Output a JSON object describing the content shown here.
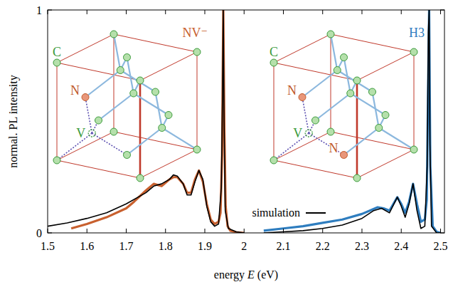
{
  "chart_data": {
    "type": "line",
    "xlabel": "energy E (eV)",
    "ylabel": "normal. PL intensity",
    "xlim": [
      1.5,
      2.51
    ],
    "xticks": [
      1.5,
      1.6,
      1.7,
      1.8,
      1.9,
      2,
      2.1,
      2.2,
      2.3,
      2.4,
      2.5
    ],
    "ylim": [
      0,
      1
    ],
    "yticks": [
      0,
      1
    ],
    "legend": "bottom",
    "series": [
      {
        "name": "NV⁻",
        "color": "#c8602e",
        "x": [
          1.56,
          1.6,
          1.65,
          1.7,
          1.72,
          1.75,
          1.77,
          1.79,
          1.81,
          1.82,
          1.83,
          1.845,
          1.855,
          1.865,
          1.875,
          1.885,
          1.895,
          1.905,
          1.915,
          1.925,
          1.935,
          1.94,
          1.944,
          1.947,
          1.95,
          1.953,
          1.958,
          1.965,
          1.98,
          2.0
        ],
        "values": [
          0.02,
          0.04,
          0.07,
          0.11,
          0.14,
          0.19,
          0.22,
          0.21,
          0.24,
          0.25,
          0.25,
          0.22,
          0.18,
          0.18,
          0.24,
          0.28,
          0.23,
          0.13,
          0.06,
          0.04,
          0.05,
          0.09,
          0.35,
          1.0,
          0.45,
          0.12,
          0.03,
          0.01,
          0.003,
          0.0
        ]
      },
      {
        "name": "H3",
        "color": "#2e7dbf",
        "x": [
          2.05,
          2.1,
          2.15,
          2.2,
          2.25,
          2.3,
          2.32,
          2.34,
          2.355,
          2.37,
          2.38,
          2.39,
          2.4,
          2.41,
          2.42,
          2.43,
          2.44,
          2.45,
          2.46,
          2.465,
          2.468,
          2.471,
          2.474,
          2.48,
          2.49,
          2.5
        ],
        "values": [
          0.01,
          0.02,
          0.03,
          0.045,
          0.06,
          0.085,
          0.1,
          0.115,
          0.11,
          0.1,
          0.13,
          0.16,
          0.13,
          0.09,
          0.14,
          0.22,
          0.13,
          0.05,
          0.06,
          0.15,
          0.6,
          1.0,
          0.3,
          0.03,
          0.005,
          0.0
        ]
      },
      {
        "name": "simulation",
        "color": "#000000",
        "x": [
          1.5,
          1.55,
          1.6,
          1.65,
          1.7,
          1.75,
          1.77,
          1.79,
          1.81,
          1.82,
          1.83,
          1.845,
          1.855,
          1.865,
          1.875,
          1.885,
          1.895,
          1.905,
          1.915,
          1.925,
          1.935,
          1.942,
          1.945,
          1.947,
          1.949,
          1.952,
          1.96,
          1.98,
          2.0,
          null,
          2.05,
          2.1,
          2.15,
          2.2,
          2.25,
          2.3,
          2.33,
          2.35,
          2.37,
          2.39,
          2.4,
          2.41,
          2.42,
          2.43,
          2.44,
          2.45,
          2.46,
          2.466,
          2.469,
          2.471,
          2.473,
          2.477,
          2.49,
          2.5
        ],
        "values": [
          0.03,
          0.045,
          0.065,
          0.09,
          0.13,
          0.18,
          0.21,
          0.22,
          0.24,
          0.26,
          0.255,
          0.22,
          0.17,
          0.17,
          0.23,
          0.28,
          0.24,
          0.12,
          0.05,
          0.03,
          0.04,
          0.2,
          0.6,
          1.0,
          0.5,
          0.1,
          0.02,
          0.005,
          0.0,
          null,
          0.0,
          0.005,
          0.01,
          0.02,
          0.035,
          0.065,
          0.1,
          0.11,
          0.09,
          0.16,
          0.12,
          0.07,
          0.13,
          0.22,
          0.1,
          0.02,
          0.03,
          0.3,
          0.9,
          1.0,
          0.4,
          0.03,
          0.0,
          0.0
        ]
      }
    ],
    "insets": [
      {
        "labels": [
          "C",
          "V",
          "N"
        ]
      },
      {
        "labels": [
          "C",
          "V",
          "N",
          "N"
        ]
      }
    ]
  }
}
